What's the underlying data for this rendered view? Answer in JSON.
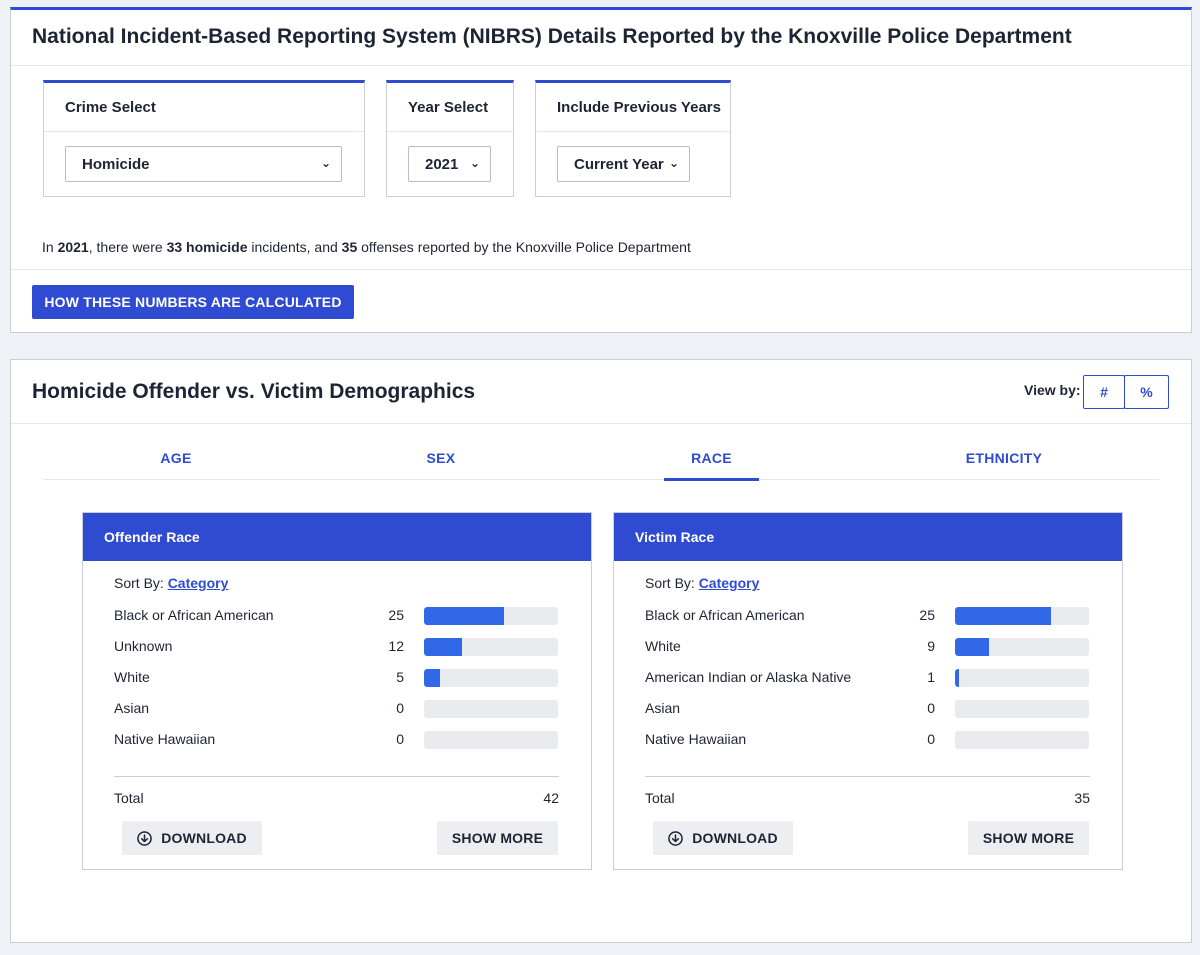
{
  "header": {
    "title": "National Incident-Based Reporting System (NIBRS) Details Reported by the Knoxville Police Department"
  },
  "filters": {
    "crime": {
      "label": "Crime Select",
      "value": "Homicide"
    },
    "year": {
      "label": "Year Select",
      "value": "2021"
    },
    "previous": {
      "label": "Include Previous Years",
      "value": "Current Year"
    }
  },
  "summary": {
    "prefix": "In ",
    "year": "2021",
    "text1": ", there were ",
    "incidents": "33",
    "crime": "homicide",
    "text2": " incidents, and ",
    "offenses": "35",
    "text3": " offenses reported by the Knoxville Police Department"
  },
  "calc_button": "HOW THESE NUMBERS ARE CALCULATED",
  "demographics": {
    "title": "Homicide Offender vs. Victim Demographics",
    "view_by_label": "View by:",
    "view_options": [
      "#",
      "%"
    ],
    "tabs": [
      {
        "label": "AGE"
      },
      {
        "label": "SEX"
      },
      {
        "label": "RACE",
        "active": true
      },
      {
        "label": "ETHNICITY"
      }
    ]
  },
  "panels": {
    "offender": {
      "title": "Offender Race",
      "sort_prefix": "Sort By:",
      "sort_link": "Category",
      "max": 42,
      "rows": [
        {
          "label": "Black or African American",
          "value": "25",
          "n": 25
        },
        {
          "label": "Unknown",
          "value": "12",
          "n": 12
        },
        {
          "label": "White",
          "value": "5",
          "n": 5
        },
        {
          "label": "Asian",
          "value": "0",
          "n": 0
        },
        {
          "label": "Native Hawaiian",
          "value": "0",
          "n": 0
        }
      ],
      "total_label": "Total",
      "total_value": "42",
      "download_label": "DOWNLOAD",
      "show_more_label": "SHOW MORE"
    },
    "victim": {
      "title": "Victim Race",
      "sort_prefix": "Sort By:",
      "sort_link": "Category",
      "max": 35,
      "rows": [
        {
          "label": "Black or African American",
          "value": "25",
          "n": 25
        },
        {
          "label": "White",
          "value": "9",
          "n": 9
        },
        {
          "label": "American Indian or Alaska Native",
          "value": "1",
          "n": 1
        },
        {
          "label": "Asian",
          "value": "0",
          "n": 0
        },
        {
          "label": "Native Hawaiian",
          "value": "0",
          "n": 0
        }
      ],
      "total_label": "Total",
      "total_value": "35",
      "download_label": "DOWNLOAD",
      "show_more_label": "SHOW MORE"
    }
  },
  "colors": {
    "accent": "#2f4bd2",
    "bar": "#3168e8",
    "track": "#e9ebef"
  }
}
